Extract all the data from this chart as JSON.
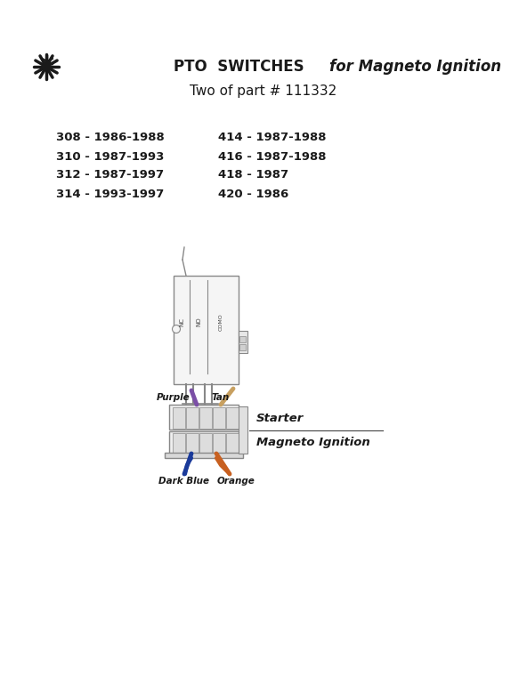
{
  "title_regular": "PTO  SWITCHES  ",
  "title_italic": "for Magneto Ignition",
  "subtitle": "Two of part # 111332",
  "left_items": [
    "308 - 1986-1988",
    "310 - 1987-1993",
    "312 - 1987-1997",
    "314 - 1993-1997"
  ],
  "right_items": [
    "414 - 1987-1988",
    "416 - 1987-1988",
    "418 - 1987",
    "420 - 1986"
  ],
  "wire_labels": [
    "Purple",
    "Tan",
    "Dark Blue",
    "Orange"
  ],
  "wire_colors": [
    "#7B4FA6",
    "#C8A060",
    "#1A3A9A",
    "#C86020"
  ],
  "connector_label_top": "Starter",
  "connector_label_bottom": "Magneto Ignition",
  "bg_color": "#FFFFFF",
  "text_color": "#1a1a1a",
  "snowflake_color": "#1a1a1a",
  "item_fontsize": 9.5,
  "title_fontsize": 12,
  "subtitle_fontsize": 11
}
